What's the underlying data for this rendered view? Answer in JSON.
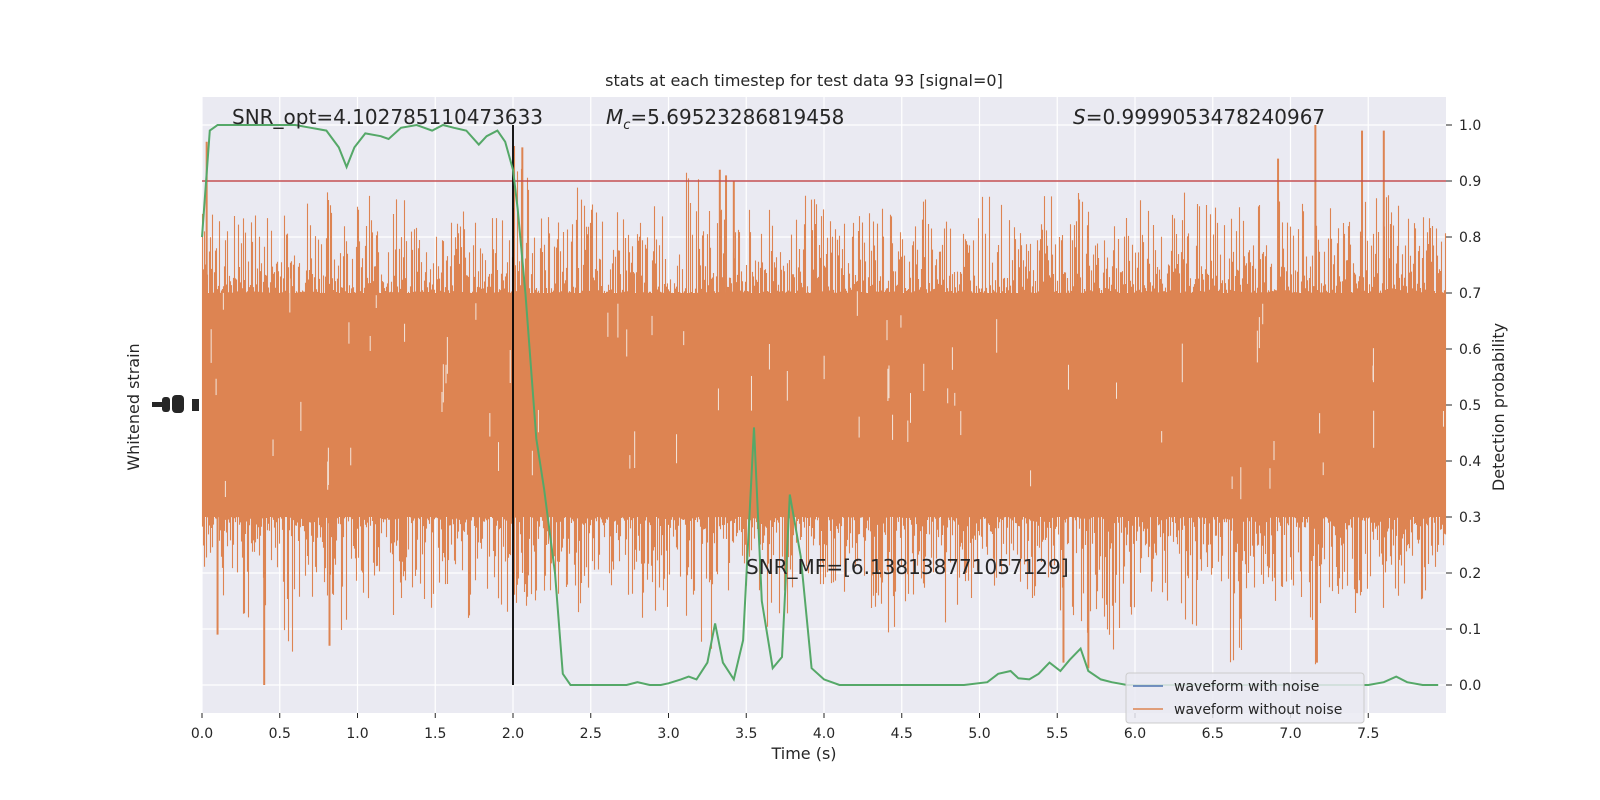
{
  "chart_data": {
    "type": "line",
    "title": "stats at each timestep for test data 93 [signal=0]",
    "xlabel": "Time (s)",
    "ylabel_left": "Whitened strain",
    "ylabel_right": "Detection probability",
    "xlim": [
      0.0,
      8.0
    ],
    "ylim_right": [
      -0.05,
      1.05
    ],
    "x_ticks": [
      "0.0",
      "0.5",
      "1.0",
      "1.5",
      "2.0",
      "2.5",
      "3.0",
      "3.5",
      "4.0",
      "4.5",
      "5.0",
      "5.5",
      "6.0",
      "6.5",
      "7.0",
      "7.5"
    ],
    "y_ticks_right": [
      "0.0",
      "0.1",
      "0.2",
      "0.3",
      "0.4",
      "0.5",
      "0.6",
      "0.7",
      "0.8",
      "0.9",
      "1.0"
    ],
    "threshold": 0.9,
    "marker_time": 2.0,
    "annotations": {
      "snr_opt": "SNR_opt=4.102785110473633",
      "mc_symbol": "M",
      "mc_sub": "c",
      "mc_value": "=5.69523286819458",
      "s_symbol": "S",
      "s_value": "=0.9999053478240967",
      "snr_mf": "SNR_MF=[6.138138771057129]"
    },
    "legend": {
      "placement": "lower-right",
      "entries": [
        "waveform with noise",
        "waveform without noise"
      ]
    },
    "series": [
      {
        "name": "waveform without noise",
        "kind": "noise-band",
        "upper_envelope": [
          0.87,
          0.83,
          0.86,
          0.84,
          0.86,
          0.84,
          0.89,
          0.86,
          0.88,
          0.86,
          0.88,
          0.85,
          0.89,
          0.87,
          0.82,
          0.84,
          0.86,
          0.83,
          0.85,
          0.83,
          0.97,
          0.86,
          0.84,
          0.83,
          0.89,
          0.87,
          0.85,
          0.86,
          0.85,
          0.87,
          0.83,
          0.93,
          0.9,
          0.86,
          0.86,
          0.87,
          0.85,
          0.84,
          0.89,
          0.87,
          0.86,
          0.84,
          0.87,
          0.86,
          0.85,
          0.83,
          0.87,
          0.86,
          0.85,
          0.84,
          0.88,
          0.86,
          0.86,
          0.85,
          0.88,
          0.84,
          0.88,
          0.86,
          0.87,
          0.85,
          0.87,
          0.86,
          0.84,
          0.89,
          0.86,
          0.86,
          0.86,
          0.88,
          0.85,
          0.87,
          0.86,
          0.84,
          0.86,
          0.85,
          0.89,
          0.87,
          0.92,
          0.86,
          0.85,
          0.84
        ],
        "lower_envelope": [
          0.2,
          0.14,
          0.12,
          0.18,
          0.1,
          0.05,
          0.15,
          0.12,
          0.09,
          0.07,
          0.14,
          0.15,
          0.12,
          0.16,
          0.13,
          0.17,
          0.15,
          0.11,
          0.17,
          0.12,
          0.13,
          0.15,
          0.16,
          0.12,
          0.1,
          0.17,
          0.17,
          0.15,
          0.1,
          0.12,
          0.17,
          0.12,
          0.06,
          0.15,
          0.12,
          0.16,
          0.06,
          0.11,
          0.14,
          0.15,
          0.12,
          0.16,
          0.17,
          0.13,
          0.08,
          0.14,
          0.16,
          0.11,
          0.14,
          0.14,
          0.16,
          0.17,
          0.17,
          0.12,
          0.15,
          0.13,
          0.09,
          0.05,
          0.06,
          0.12,
          0.16,
          0.15,
          0.14,
          0.1,
          0.16,
          0.17,
          0.03,
          0.14,
          0.17,
          0.12,
          0.15,
          0.03,
          0.14,
          0.14,
          0.05,
          0.08,
          0.14,
          0.18,
          0.13,
          0.21
        ],
        "outliers": [
          [
            0.03,
            0.97
          ],
          [
            0.4,
            0.0
          ],
          [
            0.1,
            0.09
          ],
          [
            0.82,
            0.07
          ],
          [
            2.06,
            0.96
          ],
          [
            3.33,
            0.92
          ],
          [
            3.37,
            0.91
          ],
          [
            3.42,
            0.9
          ],
          [
            7.16,
            1.0
          ],
          [
            7.46,
            0.99
          ],
          [
            7.6,
            0.99
          ],
          [
            6.92,
            0.94
          ],
          [
            7.17,
            0.04
          ],
          [
            5.54,
            0.04
          ],
          [
            5.7,
            0.03
          ]
        ]
      },
      {
        "name": "",
        "kind": "line",
        "x": [
          0.0,
          0.05,
          0.1,
          0.2,
          0.3,
          0.4,
          0.5,
          0.6,
          0.7,
          0.8,
          0.88,
          0.93,
          0.98,
          1.05,
          1.15,
          1.2,
          1.28,
          1.38,
          1.48,
          1.55,
          1.62,
          1.7,
          1.78,
          1.83,
          1.9,
          1.95,
          2.0,
          2.03,
          2.08,
          2.15,
          2.2,
          2.27,
          2.32,
          2.37,
          2.45,
          2.55,
          2.65,
          2.73,
          2.8,
          2.88,
          2.95,
          3.0,
          3.08,
          3.13,
          3.18,
          3.25,
          3.3,
          3.35,
          3.42,
          3.48,
          3.55,
          3.6,
          3.67,
          3.73,
          3.78,
          3.85,
          3.92,
          4.0,
          4.1,
          4.2,
          4.3,
          4.5,
          4.7,
          4.9,
          5.05,
          5.12,
          5.2,
          5.25,
          5.32,
          5.38,
          5.45,
          5.52,
          5.58,
          5.65,
          5.7,
          5.78,
          5.85,
          5.95,
          6.1,
          6.3,
          6.5,
          6.7,
          6.9,
          7.1,
          7.3,
          7.5,
          7.6,
          7.68,
          7.75,
          7.85,
          7.95
        ],
        "y": [
          0.8,
          0.99,
          1.0,
          1.0,
          1.0,
          1.0,
          1.0,
          1.0,
          0.995,
          0.99,
          0.96,
          0.925,
          0.96,
          0.985,
          0.98,
          0.975,
          0.995,
          1.0,
          0.99,
          1.0,
          0.995,
          0.99,
          0.965,
          0.98,
          0.99,
          0.97,
          0.92,
          0.85,
          0.7,
          0.44,
          0.35,
          0.2,
          0.02,
          0.0,
          0.0,
          0.0,
          0.0,
          0.0,
          0.005,
          0.0,
          0.0,
          0.003,
          0.01,
          0.015,
          0.01,
          0.04,
          0.11,
          0.04,
          0.01,
          0.08,
          0.46,
          0.15,
          0.03,
          0.05,
          0.34,
          0.23,
          0.03,
          0.01,
          0.0,
          0.0,
          0.0,
          0.0,
          0.0,
          0.0,
          0.005,
          0.02,
          0.025,
          0.012,
          0.01,
          0.02,
          0.04,
          0.025,
          0.045,
          0.065,
          0.025,
          0.01,
          0.005,
          0.0,
          0.0,
          0.0,
          0.0,
          0.0,
          0.0,
          0.0,
          0.0,
          0.0,
          0.005,
          0.015,
          0.005,
          0.0,
          0.0
        ]
      }
    ],
    "colors": {
      "background": "#eaeaf2",
      "grid": "#ffffff",
      "noise": "#dd8452",
      "noisy_waveform": "#4c72b0",
      "probability": "#55a868",
      "threshold": "#c44e52",
      "marker": "#000000"
    }
  }
}
